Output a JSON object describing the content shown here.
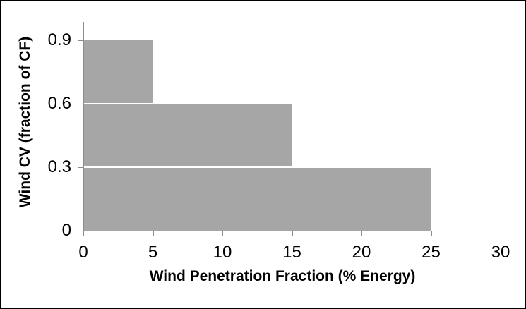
{
  "chart_data": {
    "type": "area",
    "subtype": "descending-step-bands",
    "title": "",
    "xlabel": "Wind Penetration Fraction (% Energy)",
    "ylabel": "Wind CV (fraction of CF)",
    "segments": [
      {
        "x_start": 0,
        "x_end": 5,
        "value": 0.9
      },
      {
        "x_start": 5,
        "x_end": 15,
        "value": 0.6
      },
      {
        "x_start": 15,
        "x_end": 25,
        "value": 0.3
      }
    ],
    "x_ticks": [
      0,
      5,
      10,
      15,
      20,
      25,
      30
    ],
    "y_ticks": [
      0,
      0.3,
      0.6,
      0.9
    ],
    "x_tick_labels": [
      "0",
      "5",
      "10",
      "15",
      "20",
      "25",
      "30"
    ],
    "y_tick_labels": [
      "0",
      "0.3",
      "0.6",
      "0.9"
    ],
    "xlim": [
      0,
      30
    ],
    "ylim": [
      0,
      1.0
    ],
    "grid": false,
    "legend": false,
    "fill_color": "#A6A6A6",
    "separator_color": "#FFFFFF",
    "axis_color": "#8C8C8C",
    "text_color": "#000000",
    "border_color": "#000000",
    "background_color": "#FFFFFF"
  }
}
